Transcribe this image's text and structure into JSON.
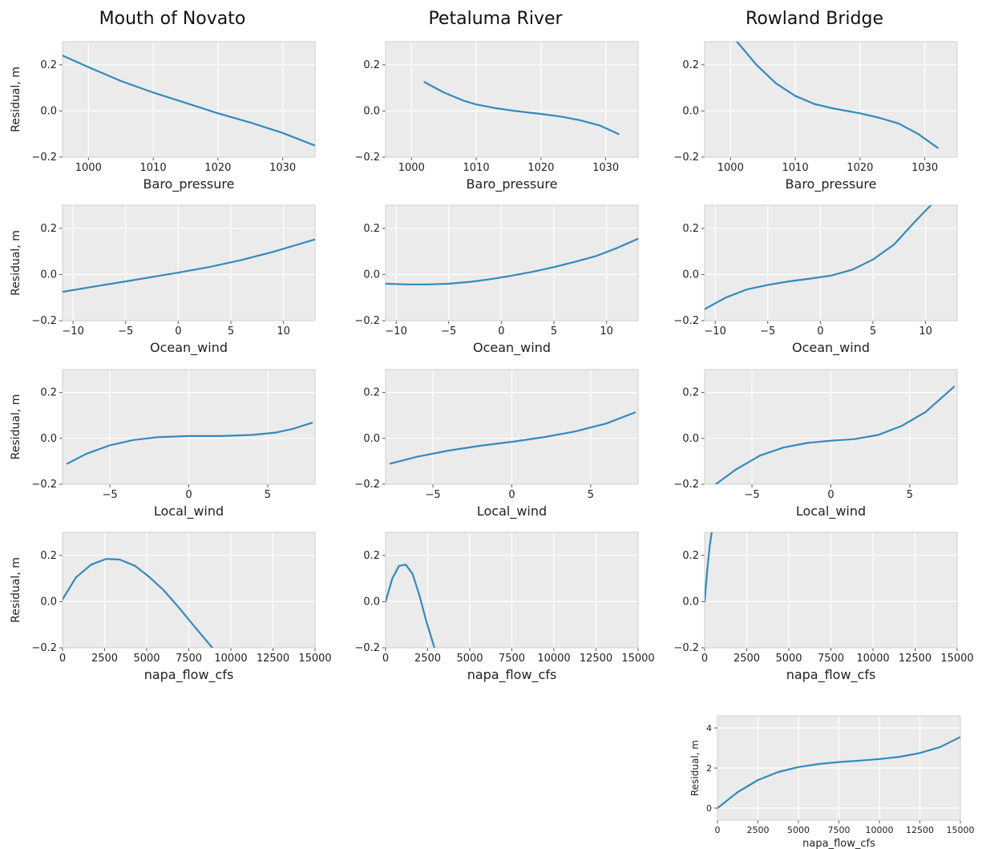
{
  "figure": {
    "column_titles": [
      "Mouth of Novato",
      "Petaluma River",
      "Rowland Bridge"
    ],
    "line_color": "#348abd",
    "background_color": "#ebebeb"
  },
  "chart_data": [
    {
      "type": "line",
      "title": "Mouth of Novato",
      "xlabel": "Baro_pressure",
      "ylabel": "Residual, m",
      "xlim": [
        996,
        1035
      ],
      "ylim": [
        -0.2,
        0.3
      ],
      "xticks": [
        1000,
        1010,
        1020,
        1030
      ],
      "yticks": [
        -0.2,
        0.0,
        0.2
      ],
      "xtick_labels": [
        "1000",
        "1010",
        "1020",
        "1030"
      ],
      "ytick_labels": [
        "−0.2",
        "0.0",
        "0.2"
      ],
      "grid": true,
      "x": [
        996,
        1000,
        1005,
        1010,
        1015,
        1020,
        1025,
        1030,
        1035
      ],
      "y": [
        0.24,
        0.19,
        0.13,
        0.08,
        0.035,
        -0.01,
        -0.05,
        -0.095,
        -0.15
      ]
    },
    {
      "type": "line",
      "title": "Petaluma River",
      "xlabel": "Baro_pressure",
      "ylabel": "",
      "xlim": [
        996,
        1035
      ],
      "ylim": [
        -0.2,
        0.3
      ],
      "xticks": [
        1000,
        1010,
        1020,
        1030
      ],
      "yticks": [
        -0.2,
        0.0,
        0.2
      ],
      "xtick_labels": [
        "1000",
        "1010",
        "1020",
        "1030"
      ],
      "ytick_labels": [
        "−0.2",
        "0.0",
        "0.2"
      ],
      "grid": true,
      "x": [
        1002,
        1005,
        1008,
        1010,
        1013,
        1016,
        1020,
        1023,
        1026,
        1029,
        1032
      ],
      "y": [
        0.125,
        0.08,
        0.045,
        0.028,
        0.012,
        0.0,
        -0.013,
        -0.024,
        -0.04,
        -0.062,
        -0.1
      ]
    },
    {
      "type": "line",
      "title": "Rowland Bridge",
      "xlabel": "Baro_pressure",
      "ylabel": "",
      "xlim": [
        996,
        1035
      ],
      "ylim": [
        -0.2,
        0.3
      ],
      "xticks": [
        1000,
        1010,
        1020,
        1030
      ],
      "yticks": [
        -0.2,
        0.0,
        0.2
      ],
      "xtick_labels": [
        "1000",
        "1010",
        "1020",
        "1030"
      ],
      "ytick_labels": [
        "−0.2",
        "0.0",
        "0.2"
      ],
      "grid": true,
      "x": [
        1001,
        1004,
        1007,
        1010,
        1013,
        1016,
        1020,
        1023,
        1026,
        1029,
        1032
      ],
      "y": [
        0.3,
        0.2,
        0.12,
        0.065,
        0.03,
        0.01,
        -0.01,
        -0.03,
        -0.055,
        -0.1,
        -0.16
      ]
    },
    {
      "type": "line",
      "title": "",
      "xlabel": "Ocean_wind",
      "ylabel": "Residual, m",
      "xlim": [
        -11,
        13
      ],
      "ylim": [
        -0.2,
        0.3
      ],
      "xticks": [
        -10,
        -5,
        0,
        5,
        10
      ],
      "yticks": [
        -0.2,
        0.0,
        0.2
      ],
      "xtick_labels": [
        "−10",
        "−5",
        "0",
        "5",
        "10"
      ],
      "ytick_labels": [
        "−0.2",
        "0.0",
        "0.2"
      ],
      "grid": true,
      "x": [
        -11,
        -8,
        -5,
        -2,
        0,
        3,
        6,
        9,
        13
      ],
      "y": [
        -0.075,
        -0.052,
        -0.03,
        -0.007,
        0.008,
        0.033,
        0.063,
        0.098,
        0.152
      ]
    },
    {
      "type": "line",
      "title": "",
      "xlabel": "Ocean_wind",
      "ylabel": "",
      "xlim": [
        -11,
        13
      ],
      "ylim": [
        -0.2,
        0.3
      ],
      "xticks": [
        -10,
        -5,
        0,
        5,
        10
      ],
      "yticks": [
        -0.2,
        0.0,
        0.2
      ],
      "xtick_labels": [
        "−10",
        "−5",
        "0",
        "5",
        "10"
      ],
      "ytick_labels": [
        "−0.2",
        "0.0",
        "0.2"
      ],
      "grid": true,
      "x": [
        -11,
        -9,
        -7,
        -5,
        -3,
        -1,
        1,
        3,
        5,
        7,
        9,
        11,
        13
      ],
      "y": [
        -0.04,
        -0.043,
        -0.043,
        -0.04,
        -0.032,
        -0.02,
        -0.005,
        0.012,
        0.032,
        0.055,
        0.08,
        0.115,
        0.155
      ]
    },
    {
      "type": "line",
      "title": "",
      "xlabel": "Ocean_wind",
      "ylabel": "",
      "xlim": [
        -11,
        13
      ],
      "ylim": [
        -0.2,
        0.3
      ],
      "xticks": [
        -10,
        -5,
        0,
        5,
        10
      ],
      "yticks": [
        -0.2,
        0.0,
        0.2
      ],
      "xtick_labels": [
        "−10",
        "−5",
        "0",
        "5",
        "10"
      ],
      "ytick_labels": [
        "−0.2",
        "0.0",
        "0.2"
      ],
      "grid": true,
      "x": [
        -11,
        -9,
        -7,
        -5,
        -3,
        -1,
        1,
        3,
        5,
        7,
        9,
        10.5
      ],
      "y": [
        -0.15,
        -0.1,
        -0.065,
        -0.045,
        -0.03,
        -0.018,
        -0.005,
        0.02,
        0.065,
        0.13,
        0.23,
        0.3
      ]
    },
    {
      "type": "line",
      "title": "",
      "xlabel": "Local_wind",
      "ylabel": "Residual, m",
      "xlim": [
        -8,
        8
      ],
      "ylim": [
        -0.2,
        0.3
      ],
      "xticks": [
        -5,
        0,
        5
      ],
      "yticks": [
        -0.2,
        0.0,
        0.2
      ],
      "xtick_labels": [
        "−5",
        "0",
        "5"
      ],
      "ytick_labels": [
        "−0.2",
        "0.0",
        "0.2"
      ],
      "grid": true,
      "x": [
        -7.7,
        -6.5,
        -5,
        -3.5,
        -2,
        0,
        2,
        4,
        5.5,
        6.5,
        7.8
      ],
      "y": [
        -0.11,
        -0.068,
        -0.03,
        -0.007,
        0.005,
        0.01,
        0.01,
        0.015,
        0.025,
        0.04,
        0.068
      ]
    },
    {
      "type": "line",
      "title": "",
      "xlabel": "Local_wind",
      "ylabel": "",
      "xlim": [
        -8,
        8
      ],
      "ylim": [
        -0.2,
        0.3
      ],
      "xticks": [
        -5,
        0,
        5
      ],
      "yticks": [
        -0.2,
        0.0,
        0.2
      ],
      "xtick_labels": [
        "−5",
        "0",
        "5"
      ],
      "ytick_labels": [
        "−0.2",
        "0.0",
        "0.2"
      ],
      "grid": true,
      "x": [
        -7.7,
        -6,
        -4,
        -2,
        0,
        2,
        4,
        6,
        7.8
      ],
      "y": [
        -0.11,
        -0.08,
        -0.053,
        -0.032,
        -0.015,
        0.005,
        0.03,
        0.065,
        0.113
      ]
    },
    {
      "type": "line",
      "title": "",
      "xlabel": "Local_wind",
      "ylabel": "",
      "xlim": [
        -8,
        8
      ],
      "ylim": [
        -0.2,
        0.3
      ],
      "xticks": [
        -5,
        0,
        5
      ],
      "yticks": [
        -0.2,
        0.0,
        0.2
      ],
      "xtick_labels": [
        "−5",
        "0",
        "5"
      ],
      "ytick_labels": [
        "−0.2",
        "0.0",
        "0.2"
      ],
      "grid": true,
      "x": [
        -7.3,
        -6,
        -4.5,
        -3,
        -1.5,
        0,
        1.5,
        3,
        4.5,
        6,
        7.8
      ],
      "y": [
        -0.2,
        -0.135,
        -0.075,
        -0.04,
        -0.02,
        -0.01,
        -0.003,
        0.015,
        0.055,
        0.115,
        0.225
      ]
    },
    {
      "type": "line",
      "title": "",
      "xlabel": "napa_flow_cfs",
      "ylabel": "Residual, m",
      "xlim": [
        0,
        15000
      ],
      "ylim": [
        -0.2,
        0.3
      ],
      "xticks": [
        0,
        2500,
        5000,
        7500,
        10000,
        12500,
        15000
      ],
      "yticks": [
        -0.2,
        0.0,
        0.2
      ],
      "xtick_labels": [
        "0",
        "2500",
        "5000",
        "7500",
        "10000",
        "12500",
        "15000"
      ],
      "ytick_labels": [
        "−0.2",
        "0.0",
        "0.2"
      ],
      "grid": true,
      "x": [
        0,
        800,
        1700,
        2600,
        3400,
        4300,
        5100,
        6000,
        6900,
        7800,
        8900
      ],
      "y": [
        0.01,
        0.105,
        0.16,
        0.185,
        0.182,
        0.155,
        0.11,
        0.05,
        -0.025,
        -0.105,
        -0.2
      ]
    },
    {
      "type": "line",
      "title": "",
      "xlabel": "napa_flow_cfs",
      "ylabel": "",
      "xlim": [
        0,
        15000
      ],
      "ylim": [
        -0.2,
        0.3
      ],
      "xticks": [
        0,
        2500,
        5000,
        7500,
        10000,
        12500,
        15000
      ],
      "yticks": [
        -0.2,
        0.0,
        0.2
      ],
      "xtick_labels": [
        "0",
        "2500",
        "5000",
        "7500",
        "10000",
        "12500",
        "15000"
      ],
      "ytick_labels": [
        "−0.2",
        "0.0",
        "0.2"
      ],
      "grid": true,
      "x": [
        0,
        400,
        800,
        1200,
        1600,
        2000,
        2400,
        2900
      ],
      "y": [
        0.0,
        0.1,
        0.155,
        0.16,
        0.12,
        0.03,
        -0.08,
        -0.2
      ]
    },
    {
      "type": "line",
      "title": "",
      "xlabel": "napa_flow_cfs",
      "ylabel": "",
      "xlim": [
        0,
        15000
      ],
      "ylim": [
        -0.2,
        0.3
      ],
      "xticks": [
        0,
        2500,
        5000,
        7500,
        10000,
        12500,
        15000
      ],
      "yticks": [
        -0.2,
        0.0,
        0.2
      ],
      "xtick_labels": [
        "0",
        "2500",
        "5000",
        "7500",
        "10000",
        "12500",
        "15000"
      ],
      "ytick_labels": [
        "−0.2",
        "0.0",
        "0.2"
      ],
      "grid": true,
      "x": [
        0,
        150,
        300,
        420
      ],
      "y": [
        0.0,
        0.13,
        0.24,
        0.3
      ]
    },
    {
      "type": "line",
      "title": "",
      "xlabel": "napa_flow_cfs",
      "ylabel": "Residual, m",
      "xlim": [
        0,
        15000
      ],
      "ylim": [
        -0.6,
        4.6
      ],
      "xticks": [
        0,
        2500,
        5000,
        7500,
        10000,
        12500,
        15000
      ],
      "yticks": [
        0,
        2,
        4
      ],
      "xtick_labels": [
        "0",
        "2500",
        "5000",
        "7500",
        "10000",
        "12500",
        "15000"
      ],
      "ytick_labels": [
        "0",
        "2",
        "4"
      ],
      "grid": true,
      "x": [
        0,
        1250,
        2500,
        3750,
        5000,
        6250,
        7500,
        8750,
        10000,
        11250,
        12500,
        13750,
        15000
      ],
      "y": [
        0.0,
        0.8,
        1.4,
        1.8,
        2.05,
        2.2,
        2.3,
        2.37,
        2.45,
        2.56,
        2.75,
        3.05,
        3.55
      ]
    }
  ]
}
